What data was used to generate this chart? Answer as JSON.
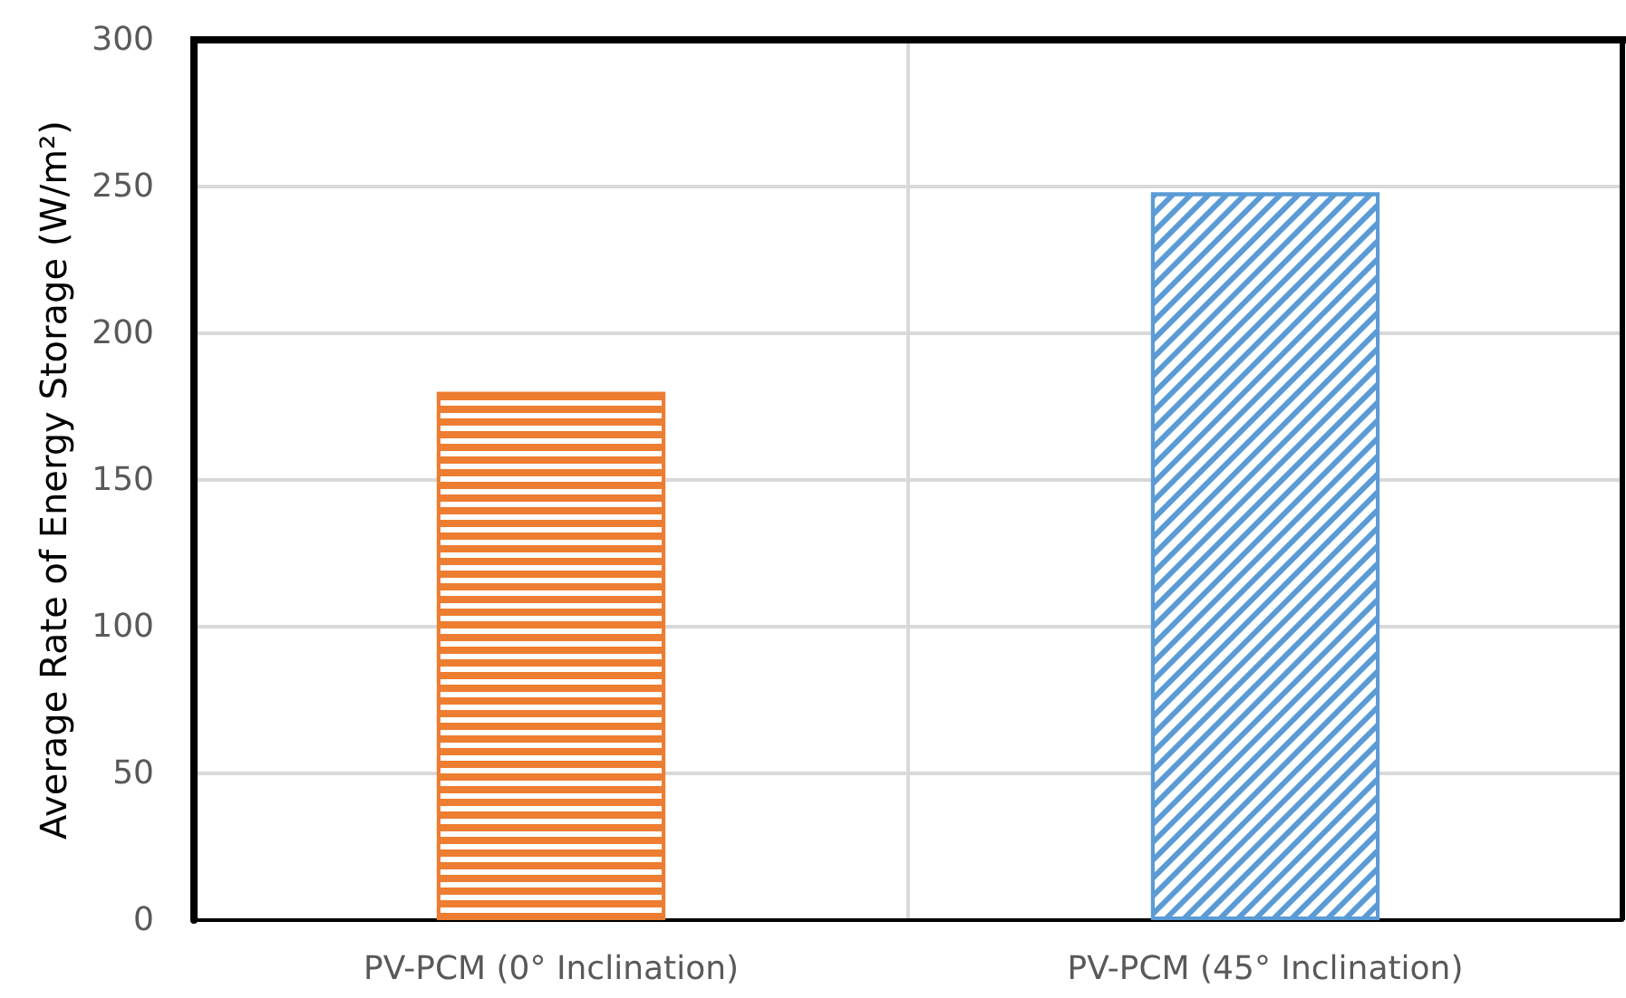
{
  "chart_data": {
    "type": "bar",
    "ylabel": "Average Rate of Energy Storage (W/m²)",
    "categories": [
      "PV-PCM (0° Inclination)",
      "PV-PCM (45° Inclination)"
    ],
    "values": [
      180,
      248
    ],
    "colors": [
      "#ed7d31",
      "#5b9bd5"
    ],
    "ylim": [
      0,
      300
    ],
    "yticks": [
      0,
      50,
      100,
      150,
      200,
      250,
      300
    ],
    "grid": true
  }
}
